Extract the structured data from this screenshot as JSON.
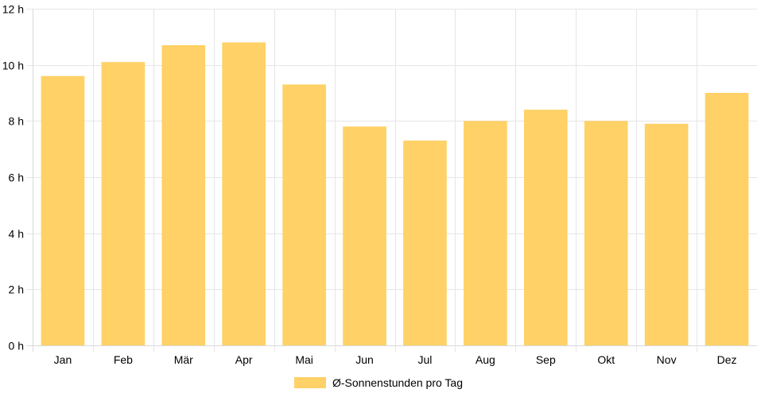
{
  "chart_data": {
    "type": "bar",
    "categories": [
      "Jan",
      "Feb",
      "Mär",
      "Apr",
      "Mai",
      "Jun",
      "Jul",
      "Aug",
      "Sep",
      "Okt",
      "Nov",
      "Dez"
    ],
    "series": [
      {
        "name": "Ø-Sonnenstunden pro Tag",
        "values": [
          9.6,
          10.1,
          10.7,
          10.8,
          9.3,
          7.8,
          7.3,
          8.0,
          8.4,
          8.0,
          7.9,
          9.0
        ],
        "color": "#ffd166"
      }
    ],
    "ylim": [
      0,
      12
    ],
    "yticks": [
      "0 h",
      "2 h",
      "4 h",
      "6 h",
      "8 h",
      "10 h",
      "12 h"
    ],
    "ytick_values": [
      0,
      2,
      4,
      6,
      8,
      10,
      12
    ],
    "grid": true,
    "legend_position": "bottom-center",
    "gridline_color": "#e6e6e6",
    "axis_line_color": "#d9d9d9"
  }
}
